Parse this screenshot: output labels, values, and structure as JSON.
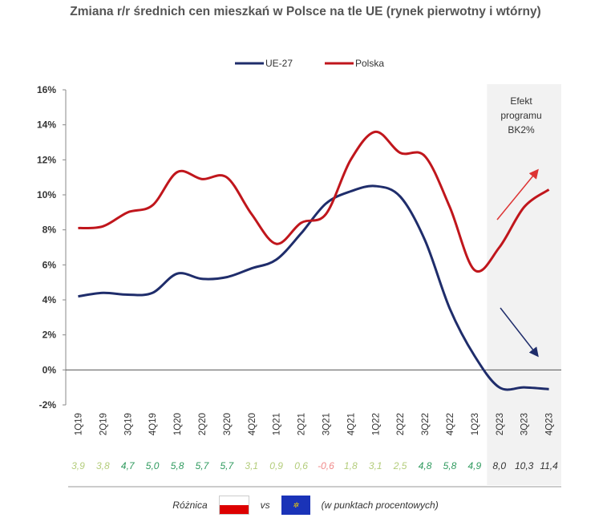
{
  "chart_data": {
    "type": "line",
    "title": "Zmiana r/r średnich cen mieszkań w Polsce na tle UE (rynek pierwotny i wtórny)",
    "categories": [
      "1Q19",
      "2Q19",
      "3Q19",
      "4Q19",
      "1Q20",
      "2Q20",
      "3Q20",
      "4Q20",
      "1Q21",
      "2Q21",
      "3Q21",
      "4Q21",
      "1Q22",
      "2Q22",
      "3Q22",
      "4Q22",
      "1Q23",
      "2Q23",
      "3Q23",
      "4Q23"
    ],
    "series": [
      {
        "name": "UE-27",
        "color": "#1f2d6b",
        "values": [
          4.2,
          4.4,
          4.3,
          4.4,
          5.5,
          5.2,
          5.3,
          5.8,
          6.3,
          7.8,
          9.5,
          10.2,
          10.5,
          9.9,
          7.4,
          3.5,
          0.8,
          -1.0,
          -1.0,
          -1.1
        ]
      },
      {
        "name": "Polska",
        "color": "#c0161c",
        "values": [
          8.1,
          8.2,
          9.0,
          9.4,
          11.3,
          10.9,
          11.0,
          8.9,
          7.2,
          8.4,
          8.9,
          12.0,
          13.6,
          12.4,
          12.2,
          9.3,
          5.7,
          7.0,
          9.3,
          10.3
        ]
      }
    ],
    "ylim": [
      -2,
      16
    ],
    "yticks": [
      "-2%",
      "0%",
      "2%",
      "4%",
      "6%",
      "8%",
      "10%",
      "12%",
      "14%",
      "16%"
    ],
    "legend": "top-center",
    "annotation": "Efekt programu BK2%",
    "annotation_lines": [
      "Efekt",
      "programu",
      "BK2%"
    ],
    "highlight_from": "2Q23",
    "differences": [
      "3,9",
      "3,8",
      "4,7",
      "5,0",
      "5,8",
      "5,7",
      "5,7",
      "3,1",
      "0,9",
      "0,6",
      "-0,6",
      "1,8",
      "3,1",
      "2,5",
      "4,8",
      "5,8",
      "4,9",
      "8,0",
      "10,3",
      "11,4"
    ],
    "difference_values": [
      3.9,
      3.8,
      4.7,
      5.0,
      5.8,
      5.7,
      5.7,
      3.1,
      0.9,
      0.6,
      -0.6,
      1.8,
      3.1,
      2.5,
      4.8,
      5.8,
      4.9,
      8.0,
      10.3,
      11.4
    ],
    "footer": {
      "label": "Różnica",
      "vs": "vs",
      "note": "(w punktach procentowych)"
    }
  }
}
